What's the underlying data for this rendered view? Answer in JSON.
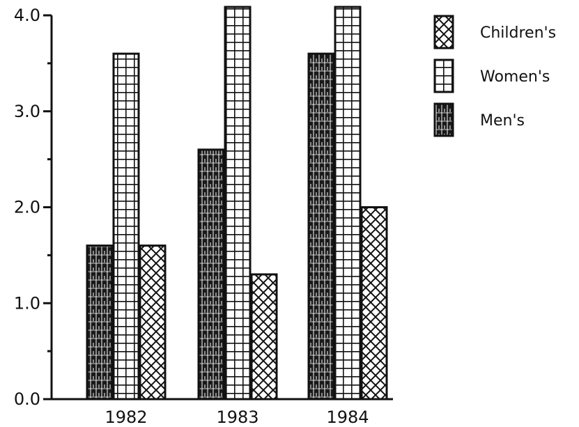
{
  "chart_data": {
    "type": "bar",
    "title": "",
    "xlabel": "",
    "ylabel": "",
    "categories": [
      "1982",
      "1983",
      "1984"
    ],
    "ylim": [
      0,
      4.0
    ],
    "y_ticks": [
      "0.0",
      "1.0",
      "2.0",
      "3.0",
      "4.0"
    ],
    "grid": false,
    "legend_position": "top-right",
    "legend_order": [
      "Children's",
      "Women's",
      "Men's"
    ],
    "series": [
      {
        "name": "Men's",
        "pattern": "dense-brick",
        "color": "#111111",
        "values": [
          1.6,
          2.6,
          3.6
        ]
      },
      {
        "name": "Women's",
        "pattern": "grid",
        "color": "#111111",
        "values": [
          3.6,
          4.1,
          4.1
        ]
      },
      {
        "name": "Children's",
        "pattern": "crosshatch",
        "color": "#111111",
        "values": [
          1.6,
          1.3,
          2.0
        ]
      }
    ]
  }
}
